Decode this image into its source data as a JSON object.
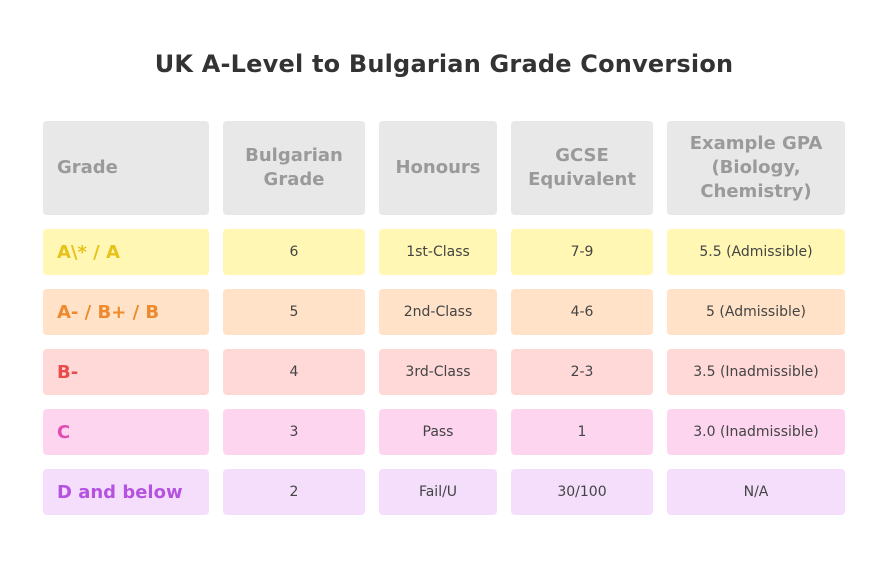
{
  "title": "UK A-Level to Bulgarian Grade Conversion",
  "headers": [
    "Grade",
    "Bulgarian Grade",
    "Honours",
    "GCSE Equivalent",
    "Example GPA (Biology, Chemistry)"
  ],
  "colors": {
    "header_bg": "#e8e8e8",
    "header_text": "#9a9a9a",
    "yellow": "#fff7b3",
    "orange": "#ffe2c7",
    "red": "#ffd8d8",
    "pink": "#fdd5ef",
    "purple": "#f4defb"
  },
  "rows": [
    {
      "grade": "A\\* / A",
      "bulgarian": "6",
      "honours": "1st-Class",
      "gcse": "7-9",
      "gpa": "5.5 (Admissible)"
    },
    {
      "grade": "A- / B+ / B",
      "bulgarian": "5",
      "honours": "2nd-Class",
      "gcse": "4-6",
      "gpa": "5 (Admissible)"
    },
    {
      "grade": "B-",
      "bulgarian": "4",
      "honours": "3rd-Class",
      "gcse": "2-3",
      "gpa": "3.5 (Inadmissible)"
    },
    {
      "grade": "C",
      "bulgarian": "3",
      "honours": "Pass",
      "gcse": "1",
      "gpa": "3.0 (Inadmissible)"
    },
    {
      "grade": "D and below",
      "bulgarian": "2",
      "honours": "Fail/U",
      "gcse": "30/100",
      "gpa": "N/A"
    }
  ]
}
